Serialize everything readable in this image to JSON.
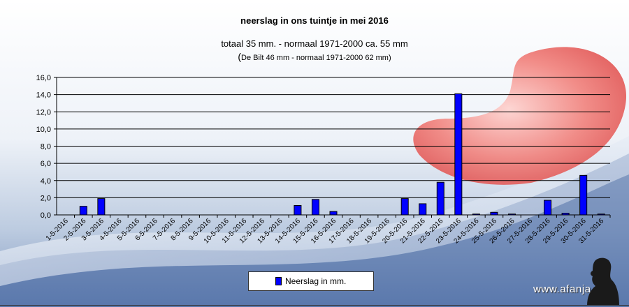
{
  "chart_data": {
    "type": "bar",
    "title": "neerslag in ons tuintje in mei 2016",
    "subtitle": "totaal 35 mm. - normaal 1971-2000  ca. 55 mm",
    "subtitle2_paren_open": "(",
    "subtitle2": "De Bilt 46 mm - normaal 1971-2000 62 mm)",
    "categories": [
      "1-5-2016",
      "2-5-2016",
      "3-5-2016",
      "4-5-2016",
      "5-5-2016",
      "6-5-2016",
      "7-5-2016",
      "8-5-2016",
      "9-5-2016",
      "10-5-2016",
      "11-5-2016",
      "12-5-2016",
      "13-5-2016",
      "14-5-2016",
      "15-5-2016",
      "16-5-2016",
      "17-5-2016",
      "18-5-2016",
      "19-5-2016",
      "20-5-2016",
      "21-5-2016",
      "22-5-2016",
      "23-5-2016",
      "24-5-2016",
      "25-5-2016",
      "26-5-2016",
      "27-5-2016",
      "28-5-2016",
      "29-5-2016",
      "30-5-2016",
      "31-5-2016"
    ],
    "series": [
      {
        "name": "Neerslag in mm.",
        "color": "#0000ff",
        "values": [
          0,
          1.0,
          1.9,
          0,
          0,
          0,
          0,
          0,
          0,
          0,
          0,
          0,
          0,
          1.1,
          1.8,
          0.4,
          0,
          0,
          0,
          1.9,
          1.3,
          3.8,
          14.1,
          0.1,
          0.3,
          0.1,
          0,
          1.7,
          0.2,
          4.6,
          0.1
        ]
      }
    ],
    "yticks": [
      "0,0",
      "2,0",
      "4,0",
      "6,0",
      "8,0",
      "10,0",
      "12,0",
      "14,0",
      "16,0"
    ],
    "ylim": [
      0,
      16
    ],
    "grid": true,
    "legend_position": "bottom-center"
  },
  "watermark": "www.afanja.nl",
  "colors": {
    "bar": "#0000ff",
    "grid": "#000000",
    "accent_red": "#e8504f"
  }
}
